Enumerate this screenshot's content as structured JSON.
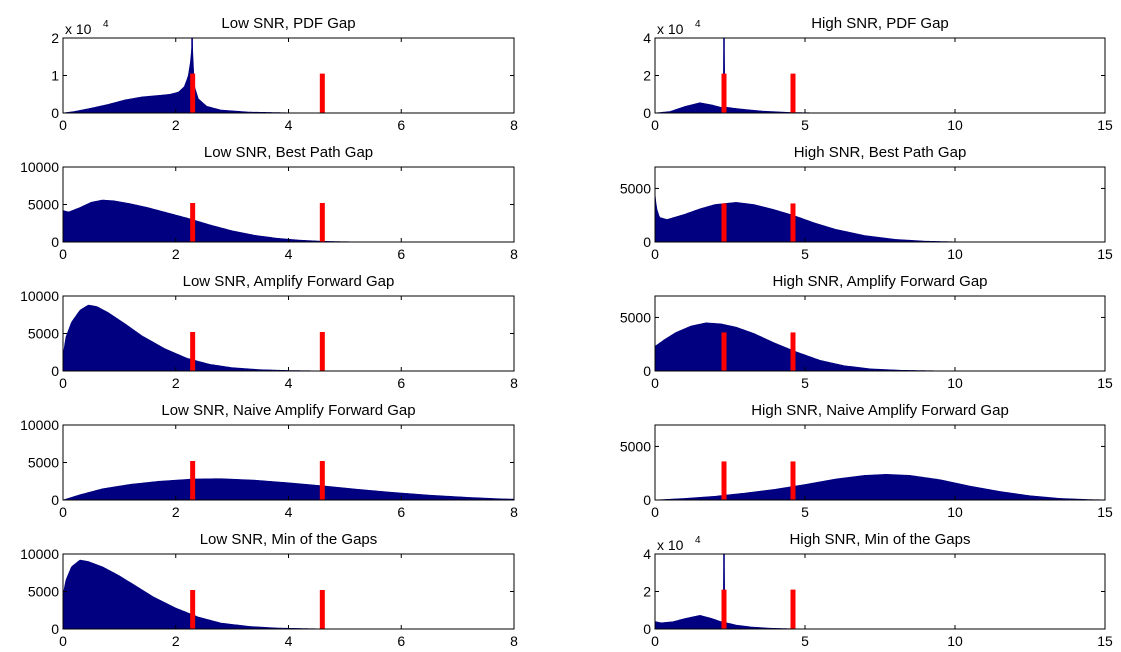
{
  "figure": {
    "colors": {
      "histogram": "#000080",
      "marker": "#ff0000",
      "axes": "#000000",
      "background": "#ffffff"
    }
  },
  "chart_data": [
    {
      "type": "histogram",
      "title": "Low SNR, PDF Gap",
      "xlim": [
        0,
        8
      ],
      "ylim": [
        0,
        20000
      ],
      "xticks": [
        "0",
        "2",
        "4",
        "6",
        "8"
      ],
      "xtick_values": [
        0,
        2,
        4,
        6,
        8
      ],
      "yticks": [
        "0",
        "1",
        "2"
      ],
      "ytick_values": [
        0,
        10000,
        20000
      ],
      "y_exponent_label": "x 10",
      "y_exponent_power": "4",
      "density_points": [
        [
          0,
          0
        ],
        [
          0.2,
          400
        ],
        [
          0.5,
          1300
        ],
        [
          0.8,
          2300
        ],
        [
          1.1,
          3500
        ],
        [
          1.4,
          4300
        ],
        [
          1.7,
          4700
        ],
        [
          1.9,
          5000
        ],
        [
          2.05,
          5600
        ],
        [
          2.15,
          7000
        ],
        [
          2.22,
          9800
        ],
        [
          2.27,
          14500
        ],
        [
          2.29,
          20000
        ],
        [
          2.33,
          7200
        ],
        [
          2.4,
          3800
        ],
        [
          2.55,
          1800
        ],
        [
          2.8,
          800
        ],
        [
          3.3,
          250
        ],
        [
          4,
          60
        ],
        [
          5,
          5
        ],
        [
          8,
          0
        ]
      ],
      "markers": {
        "x": [
          2.3,
          4.6
        ],
        "height": 10500
      }
    },
    {
      "type": "histogram",
      "title": "High SNR, PDF Gap",
      "xlim": [
        0,
        15
      ],
      "ylim": [
        0,
        40000
      ],
      "xticks": [
        "0",
        "5",
        "10",
        "15"
      ],
      "xtick_values": [
        0,
        5,
        10,
        15
      ],
      "yticks": [
        "0",
        "2",
        "4"
      ],
      "ytick_values": [
        0,
        20000,
        40000
      ],
      "y_exponent_label": "x 10",
      "y_exponent_power": "4",
      "density_points": [
        [
          0,
          0
        ],
        [
          0.5,
          800
        ],
        [
          1,
          3500
        ],
        [
          1.5,
          5500
        ],
        [
          1.9,
          4300
        ],
        [
          2.2,
          3000
        ],
        [
          2.27,
          3200
        ],
        [
          2.3,
          40000
        ],
        [
          2.34,
          3200
        ],
        [
          2.6,
          2600
        ],
        [
          3,
          1900
        ],
        [
          3.6,
          1000
        ],
        [
          4.5,
          300
        ],
        [
          5.5,
          60
        ],
        [
          6.5,
          10
        ],
        [
          8,
          0
        ],
        [
          15,
          0
        ]
      ],
      "markers": {
        "x": [
          2.3,
          4.6
        ],
        "height": 21000
      }
    },
    {
      "type": "histogram",
      "title": "Low SNR, Best Path Gap",
      "xlim": [
        0,
        8
      ],
      "ylim": [
        0,
        10000
      ],
      "xticks": [
        "0",
        "2",
        "4",
        "6",
        "8"
      ],
      "xtick_values": [
        0,
        2,
        4,
        6,
        8
      ],
      "yticks": [
        "0",
        "5000",
        "10000"
      ],
      "ytick_values": [
        0,
        5000,
        10000
      ],
      "density_points": [
        [
          0,
          4200
        ],
        [
          0.1,
          4000
        ],
        [
          0.3,
          4600
        ],
        [
          0.5,
          5300
        ],
        [
          0.7,
          5600
        ],
        [
          0.9,
          5500
        ],
        [
          1.2,
          5100
        ],
        [
          1.5,
          4600
        ],
        [
          1.8,
          4000
        ],
        [
          2.2,
          3200
        ],
        [
          2.6,
          2300
        ],
        [
          3,
          1500
        ],
        [
          3.4,
          900
        ],
        [
          3.8,
          500
        ],
        [
          4.2,
          250
        ],
        [
          4.6,
          100
        ],
        [
          5,
          40
        ],
        [
          5.5,
          10
        ],
        [
          6,
          2
        ],
        [
          8,
          0
        ]
      ],
      "markers": {
        "x": [
          2.3,
          4.6
        ],
        "height": 5200
      }
    },
    {
      "type": "histogram",
      "title": "High SNR, Best Path Gap",
      "xlim": [
        0,
        15
      ],
      "ylim": [
        0,
        7000
      ],
      "xticks": [
        "0",
        "5",
        "10",
        "15"
      ],
      "xtick_values": [
        0,
        5,
        10,
        15
      ],
      "yticks": [
        "0",
        "5000"
      ],
      "ytick_values": [
        0,
        5000
      ],
      "density_points": [
        [
          0,
          4500
        ],
        [
          0.05,
          3200
        ],
        [
          0.15,
          2300
        ],
        [
          0.4,
          2100
        ],
        [
          1,
          2600
        ],
        [
          1.5,
          3100
        ],
        [
          2,
          3500
        ],
        [
          2.7,
          3700
        ],
        [
          3.3,
          3500
        ],
        [
          4,
          3000
        ],
        [
          4.6,
          2500
        ],
        [
          5.3,
          1800
        ],
        [
          6,
          1200
        ],
        [
          7,
          600
        ],
        [
          8,
          250
        ],
        [
          9,
          80
        ],
        [
          10,
          20
        ],
        [
          11,
          5
        ],
        [
          15,
          0
        ]
      ],
      "markers": {
        "x": [
          2.3,
          4.6
        ],
        "height": 3600
      }
    },
    {
      "type": "histogram",
      "title": "Low SNR, Amplify Forward Gap",
      "xlim": [
        0,
        8
      ],
      "ylim": [
        0,
        10000
      ],
      "xticks": [
        "0",
        "2",
        "4",
        "6",
        "8"
      ],
      "xtick_values": [
        0,
        2,
        4,
        6,
        8
      ],
      "yticks": [
        "0",
        "5000",
        "10000"
      ],
      "ytick_values": [
        0,
        5000,
        10000
      ],
      "density_points": [
        [
          0,
          2000
        ],
        [
          0.05,
          4500
        ],
        [
          0.15,
          6500
        ],
        [
          0.3,
          8100
        ],
        [
          0.45,
          8800
        ],
        [
          0.6,
          8600
        ],
        [
          0.8,
          7800
        ],
        [
          1.1,
          6300
        ],
        [
          1.4,
          4700
        ],
        [
          1.8,
          3000
        ],
        [
          2.2,
          1700
        ],
        [
          2.6,
          900
        ],
        [
          3,
          450
        ],
        [
          3.5,
          180
        ],
        [
          4,
          70
        ],
        [
          4.5,
          25
        ],
        [
          5,
          8
        ],
        [
          6,
          1
        ],
        [
          8,
          0
        ]
      ],
      "markers": {
        "x": [
          2.3,
          4.6
        ],
        "height": 5200
      }
    },
    {
      "type": "histogram",
      "title": "High SNR, Amplify Forward Gap",
      "xlim": [
        0,
        15
      ],
      "ylim": [
        0,
        7000
      ],
      "xticks": [
        "0",
        "5",
        "10",
        "15"
      ],
      "xtick_values": [
        0,
        5,
        10,
        15
      ],
      "yticks": [
        "0",
        "5000"
      ],
      "ytick_values": [
        0,
        5000
      ],
      "density_points": [
        [
          0,
          2300
        ],
        [
          0.3,
          2900
        ],
        [
          0.7,
          3600
        ],
        [
          1.2,
          4200
        ],
        [
          1.7,
          4500
        ],
        [
          2.2,
          4400
        ],
        [
          2.7,
          4100
        ],
        [
          3.3,
          3500
        ],
        [
          4,
          2600
        ],
        [
          4.7,
          1800
        ],
        [
          5.5,
          1000
        ],
        [
          6.3,
          500
        ],
        [
          7.2,
          200
        ],
        [
          8.2,
          70
        ],
        [
          9.5,
          15
        ],
        [
          11,
          2
        ],
        [
          15,
          0
        ]
      ],
      "markers": {
        "x": [
          2.3,
          4.6
        ],
        "height": 3600
      }
    },
    {
      "type": "histogram",
      "title": "Low SNR, Naive Amplify Forward Gap",
      "xlim": [
        0,
        8
      ],
      "ylim": [
        0,
        10000
      ],
      "xticks": [
        "0",
        "2",
        "4",
        "6",
        "8"
      ],
      "xtick_values": [
        0,
        2,
        4,
        6,
        8
      ],
      "yticks": [
        "0",
        "5000",
        "10000"
      ],
      "ytick_values": [
        0,
        5000,
        10000
      ],
      "density_points": [
        [
          0,
          0
        ],
        [
          0.3,
          700
        ],
        [
          0.7,
          1500
        ],
        [
          1.2,
          2100
        ],
        [
          1.7,
          2500
        ],
        [
          2.3,
          2800
        ],
        [
          2.8,
          2850
        ],
        [
          3.4,
          2650
        ],
        [
          4,
          2300
        ],
        [
          4.6,
          1900
        ],
        [
          5.2,
          1450
        ],
        [
          5.8,
          1050
        ],
        [
          6.5,
          650
        ],
        [
          7.2,
          350
        ],
        [
          7.8,
          150
        ],
        [
          8,
          120
        ]
      ],
      "markers": {
        "x": [
          2.3,
          4.6
        ],
        "height": 5200
      }
    },
    {
      "type": "histogram",
      "title": "High SNR, Naive Amplify Forward Gap",
      "xlim": [
        0,
        15
      ],
      "ylim": [
        0,
        7000
      ],
      "xticks": [
        "0",
        "5",
        "10",
        "15"
      ],
      "xtick_values": [
        0,
        5,
        10,
        15
      ],
      "yticks": [
        "0",
        "5000"
      ],
      "ytick_values": [
        0,
        5000
      ],
      "density_points": [
        [
          0,
          0
        ],
        [
          1,
          150
        ],
        [
          2,
          350
        ],
        [
          3,
          650
        ],
        [
          4,
          1000
        ],
        [
          5,
          1450
        ],
        [
          6,
          1950
        ],
        [
          7,
          2300
        ],
        [
          7.7,
          2400
        ],
        [
          8.5,
          2300
        ],
        [
          9.5,
          1900
        ],
        [
          10.5,
          1300
        ],
        [
          11.5,
          800
        ],
        [
          12.5,
          400
        ],
        [
          13.5,
          150
        ],
        [
          14.5,
          40
        ],
        [
          15,
          15
        ]
      ],
      "markers": {
        "x": [
          2.3,
          4.6
        ],
        "height": 3600
      }
    },
    {
      "type": "histogram",
      "title": "Low SNR, Min of the Gaps",
      "xlim": [
        0,
        8
      ],
      "ylim": [
        0,
        10000
      ],
      "xticks": [
        "0",
        "2",
        "4",
        "6",
        "8"
      ],
      "xtick_values": [
        0,
        2,
        4,
        6,
        8
      ],
      "yticks": [
        "0",
        "5000",
        "10000"
      ],
      "ytick_values": [
        0,
        5000,
        10000
      ],
      "density_points": [
        [
          0,
          4500
        ],
        [
          0.05,
          6500
        ],
        [
          0.15,
          8300
        ],
        [
          0.3,
          9200
        ],
        [
          0.45,
          9000
        ],
        [
          0.7,
          8300
        ],
        [
          1,
          7100
        ],
        [
          1.3,
          5700
        ],
        [
          1.6,
          4300
        ],
        [
          2,
          2800
        ],
        [
          2.4,
          1600
        ],
        [
          2.8,
          800
        ],
        [
          3.3,
          350
        ],
        [
          3.8,
          130
        ],
        [
          4.5,
          30
        ],
        [
          5.5,
          3
        ],
        [
          8,
          0
        ]
      ],
      "markers": {
        "x": [
          2.3,
          4.6
        ],
        "height": 5200
      }
    },
    {
      "type": "histogram",
      "title": "High SNR, Min of the Gaps",
      "xlim": [
        0,
        15
      ],
      "ylim": [
        0,
        40000
      ],
      "xticks": [
        "0",
        "5",
        "10",
        "15"
      ],
      "xtick_values": [
        0,
        5,
        10,
        15
      ],
      "yticks": [
        "0",
        "2",
        "4"
      ],
      "ytick_values": [
        0,
        20000,
        40000
      ],
      "y_exponent_label": "x 10",
      "y_exponent_power": "4",
      "density_points": [
        [
          0,
          4000
        ],
        [
          0.2,
          3300
        ],
        [
          0.6,
          3900
        ],
        [
          1,
          5600
        ],
        [
          1.5,
          7300
        ],
        [
          1.9,
          5600
        ],
        [
          2.2,
          3900
        ],
        [
          2.27,
          3900
        ],
        [
          2.3,
          40000
        ],
        [
          2.34,
          3500
        ],
        [
          2.7,
          2100
        ],
        [
          3.2,
          1100
        ],
        [
          3.8,
          450
        ],
        [
          4.5,
          150
        ],
        [
          5.5,
          30
        ],
        [
          7,
          3
        ],
        [
          15,
          0
        ]
      ],
      "markers": {
        "x": [
          2.3,
          4.6
        ],
        "height": 21000
      }
    }
  ]
}
